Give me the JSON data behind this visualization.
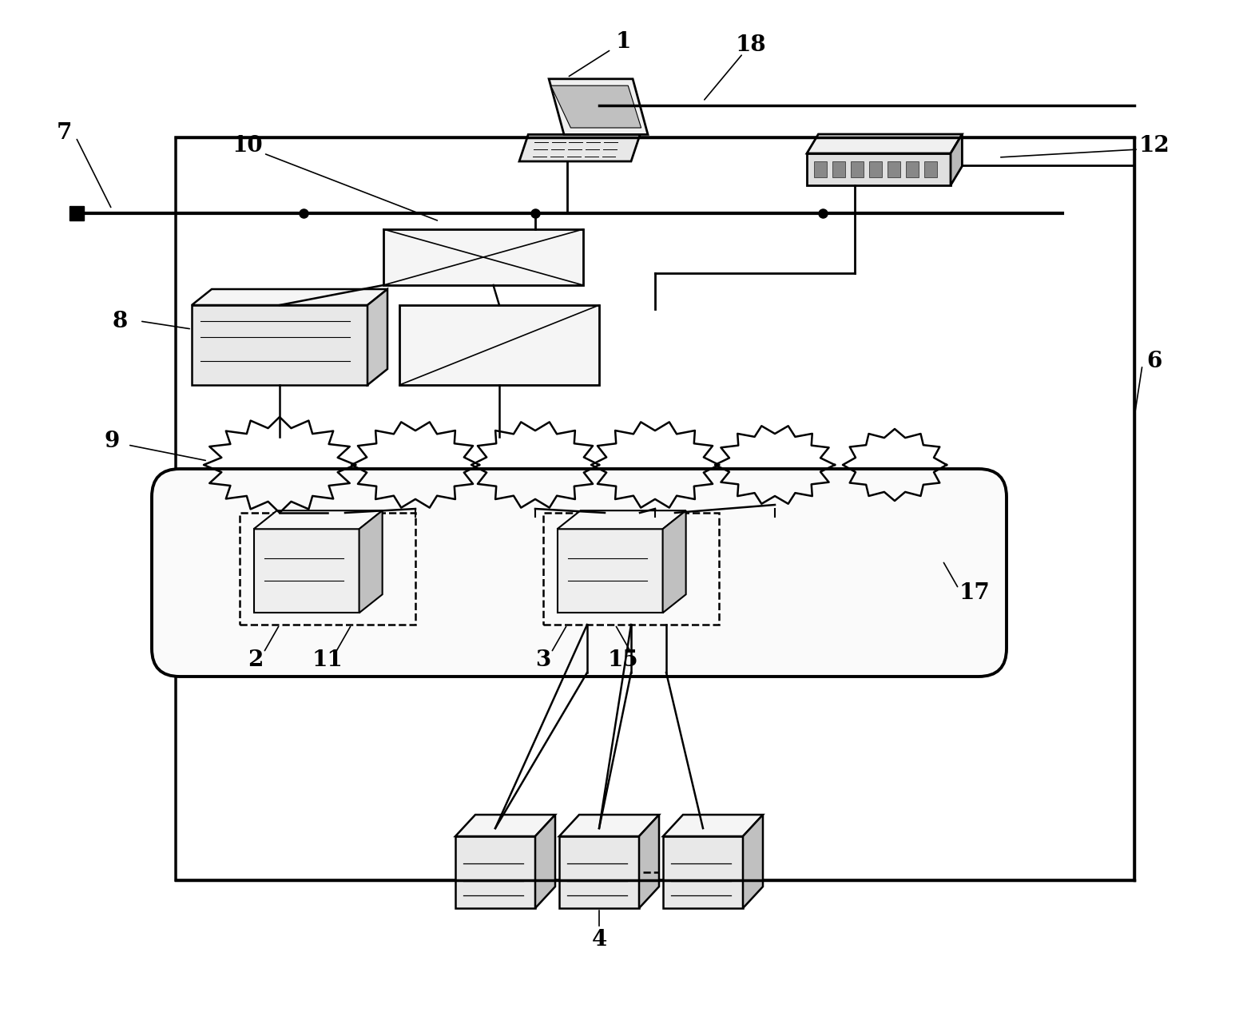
{
  "bg_color": "#ffffff",
  "lc": "#000000",
  "fig_w": 15.51,
  "fig_h": 12.72,
  "dpi": 100
}
